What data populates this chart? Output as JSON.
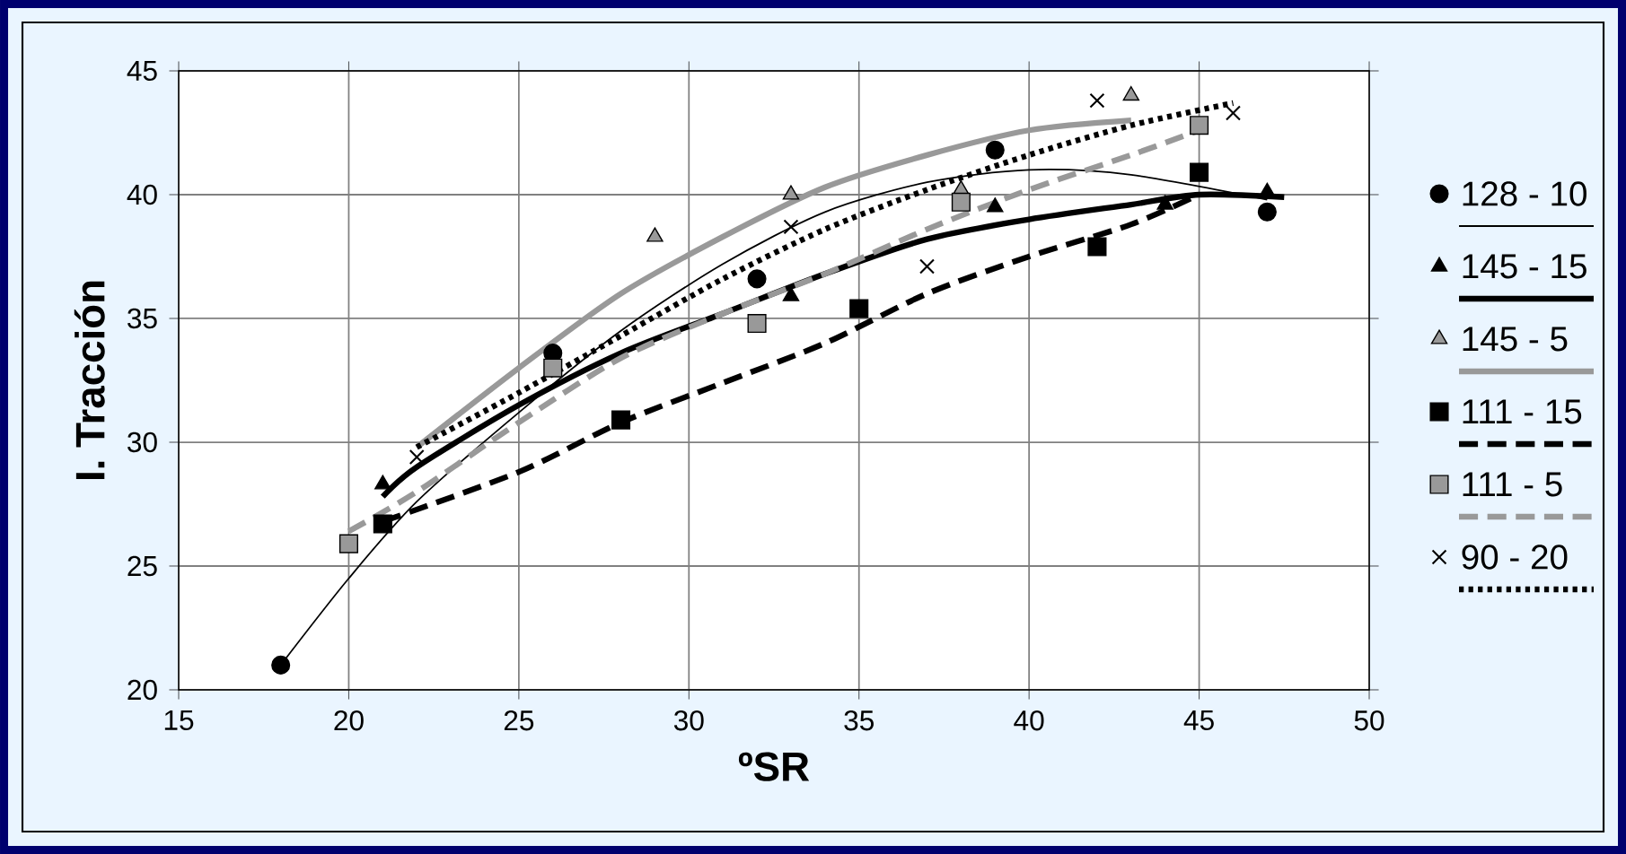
{
  "chart_data": {
    "type": "scatter",
    "xlabel": "ºSR",
    "ylabel": "I. Tracción",
    "xlim": [
      15,
      50
    ],
    "ylim": [
      20,
      45
    ],
    "xticks": [
      15,
      20,
      25,
      30,
      35,
      40,
      45,
      50
    ],
    "yticks": [
      20,
      25,
      30,
      35,
      40,
      45
    ],
    "grid": true,
    "legend": "right",
    "series": [
      {
        "name": "128 - 10",
        "color": "#000000",
        "marker": "circle",
        "x": [
          18,
          26,
          32,
          39,
          47
        ],
        "values": [
          21.0,
          33.6,
          36.6,
          41.8,
          39.3
        ]
      },
      {
        "type": "line",
        "color": "#000000",
        "line_style": "solid",
        "marker": "none",
        "x": [
          18,
          20,
          22,
          25,
          28,
          31,
          34,
          37,
          40,
          43,
          47
        ],
        "values": [
          21.0,
          24.5,
          27.6,
          31.2,
          34.5,
          37.2,
          39.3,
          40.5,
          41.0,
          40.8,
          39.8
        ]
      },
      {
        "name": "145 - 15",
        "color": "#000000",
        "marker": "triangle",
        "x": [
          21,
          33,
          39,
          44,
          47
        ],
        "values": [
          28.3,
          35.9,
          39.5,
          39.6,
          40.1
        ]
      },
      {
        "type": "line",
        "color": "#000000",
        "line_style": "solid",
        "marker": "none",
        "x": [
          21,
          22,
          25,
          28,
          31,
          34,
          37,
          40,
          43,
          45,
          47.5
        ],
        "values": [
          27.8,
          29.0,
          31.5,
          33.6,
          35.2,
          36.8,
          38.2,
          39.0,
          39.6,
          40.0,
          39.9
        ]
      },
      {
        "name": "145 - 5",
        "color": "#999999",
        "marker": "triangle",
        "x": [
          29,
          33,
          38,
          43
        ],
        "values": [
          38.3,
          40.0,
          40.2,
          44.0
        ]
      },
      {
        "type": "line",
        "color": "#999999",
        "line_style": "solid",
        "marker": "none",
        "x": [
          22,
          25,
          28,
          31,
          34,
          37,
          40,
          43
        ],
        "values": [
          29.8,
          33.0,
          36.0,
          38.3,
          40.3,
          41.6,
          42.6,
          43.0
        ]
      },
      {
        "name": "111 - 15",
        "color": "#000000",
        "marker": "square",
        "x": [
          21,
          28,
          35,
          42,
          45
        ],
        "values": [
          26.7,
          30.9,
          35.4,
          37.9,
          40.9
        ]
      },
      {
        "type": "line",
        "color": "#000000",
        "line_style": "dashed",
        "marker": "none",
        "x": [
          21,
          25,
          28,
          31,
          34,
          37,
          40,
          43,
          45
        ],
        "values": [
          26.8,
          28.8,
          30.8,
          32.4,
          34.0,
          36.0,
          37.5,
          38.8,
          40.0
        ]
      },
      {
        "name": "111 - 5",
        "color": "#999999",
        "marker": "square",
        "x": [
          20,
          26,
          32,
          38,
          45
        ],
        "values": [
          25.9,
          33.0,
          34.8,
          39.7,
          42.8
        ]
      },
      {
        "type": "line",
        "color": "#999999",
        "line_style": "dashed",
        "marker": "none",
        "x": [
          20,
          22,
          25,
          28,
          31,
          34,
          37,
          40,
          43,
          45
        ],
        "values": [
          26.4,
          28.0,
          30.8,
          33.4,
          35.2,
          36.8,
          38.6,
          40.2,
          41.6,
          42.6
        ]
      },
      {
        "name": "90 - 20",
        "color": "#000000",
        "marker": "cross",
        "x": [
          22,
          33,
          37,
          42,
          46
        ],
        "values": [
          29.4,
          38.7,
          37.1,
          43.8,
          43.3
        ]
      },
      {
        "type": "line",
        "color": "#000000",
        "line_style": "dotted",
        "marker": "none",
        "x": [
          22,
          25,
          28,
          31,
          34,
          37,
          40,
          43,
          46
        ],
        "values": [
          29.8,
          32.0,
          34.3,
          36.6,
          38.6,
          40.2,
          41.6,
          42.8,
          43.7
        ]
      }
    ]
  }
}
